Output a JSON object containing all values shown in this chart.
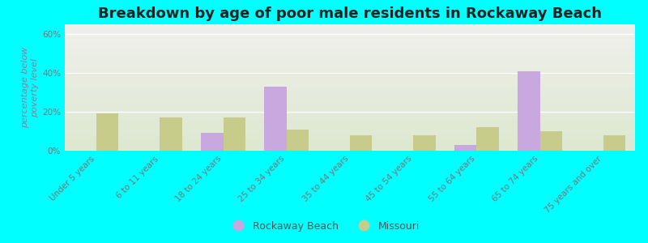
{
  "title": "Breakdown by age of poor male residents in Rockaway Beach",
  "ylabel": "percentage below\npoverty level",
  "categories": [
    "Under 5 years",
    "6 to 11 years",
    "18 to 24 years",
    "25 to 34 years",
    "35 to 44 years",
    "45 to 54 years",
    "55 to 64 years",
    "65 to 74 years",
    "75 years and over"
  ],
  "rockaway_beach": [
    0,
    0,
    9,
    33,
    0,
    0,
    3,
    41,
    0
  ],
  "missouri": [
    19,
    17,
    17,
    11,
    8,
    8,
    12,
    10,
    8
  ],
  "rockaway_color": "#c9a8e0",
  "missouri_color": "#c8cc8a",
  "background_color": "#00ffff",
  "plot_bg_top": "#f0f0ec",
  "plot_bg_bottom": "#dde8d0",
  "ylim": [
    0,
    65
  ],
  "yticks": [
    0,
    20,
    40,
    60
  ],
  "ytick_labels": [
    "0%",
    "20%",
    "40%",
    "60%"
  ],
  "bar_width": 0.35,
  "title_fontsize": 13,
  "axis_label_fontsize": 8,
  "tick_fontsize": 7.5,
  "legend_fontsize": 9
}
